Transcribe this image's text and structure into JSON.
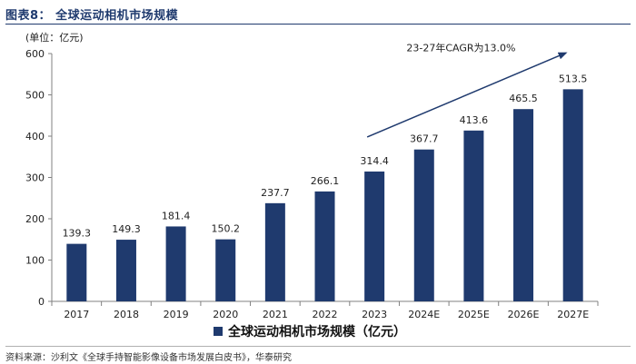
{
  "figure": {
    "title": "图表8：  全球运动相机市场规模",
    "unit": "(单位：亿元)",
    "source": "资料来源：沙利文《全球手持智能影像设备市场发展白皮书》，华泰研究"
  },
  "chart_data": {
    "type": "bar",
    "title": "全球运动相机市场规模",
    "categories": [
      "2017",
      "2018",
      "2019",
      "2020",
      "2021",
      "2022",
      "2023",
      "2024E",
      "2025E",
      "2026E",
      "2027E"
    ],
    "values": [
      139.3,
      149.3,
      181.4,
      150.2,
      237.7,
      266.1,
      314.4,
      367.7,
      413.6,
      465.5,
      513.5
    ],
    "value_labels": [
      "139.3",
      "149.3",
      "181.4",
      "150.2",
      "237.7",
      "266.1",
      "314.4",
      "367.7",
      "413.6",
      "465.5",
      "513.5"
    ],
    "series_name": "全球运动相机市场规模（亿元）",
    "ylim": [
      0,
      600
    ],
    "yticks": [
      0,
      100,
      200,
      300,
      400,
      500,
      600
    ],
    "ytick_labels": [
      "0",
      "100",
      "200",
      "300",
      "400",
      "500",
      "600"
    ],
    "xlabel": "",
    "ylabel": "",
    "annotation": "23-27年CAGR为13.0%",
    "legend_position": "bottom-center",
    "bar_color": "#1f3a6e",
    "grid": false
  }
}
